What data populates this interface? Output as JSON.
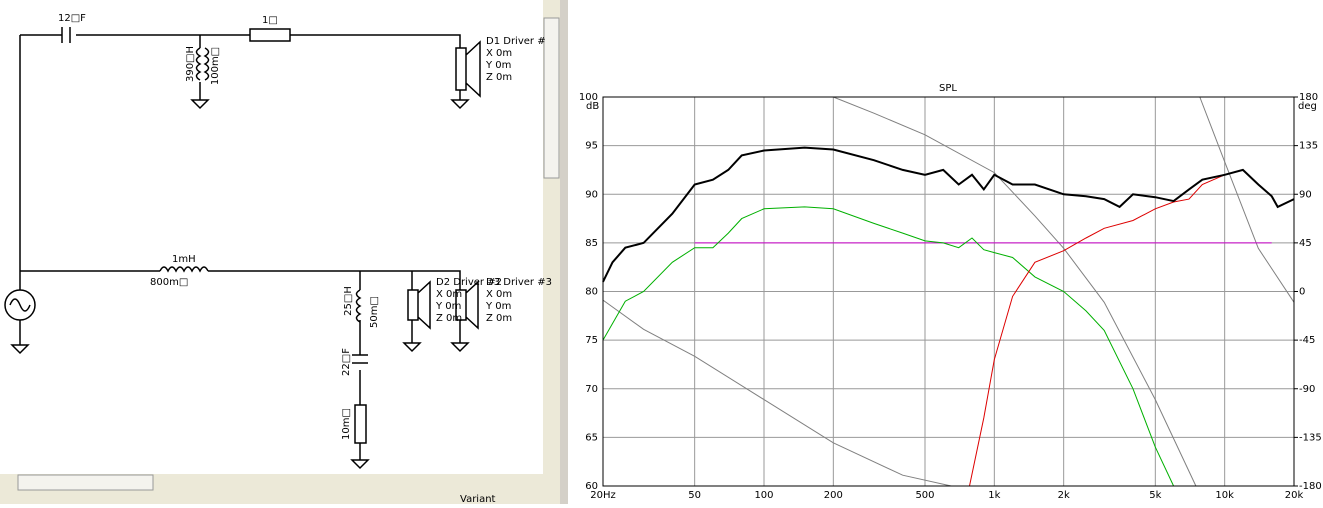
{
  "schematic": {
    "c1": "12□F",
    "r1": "1□",
    "l1": "390□H",
    "l1r": "100m□",
    "d1": "D1 Driver #",
    "d1x": "X 0m",
    "d1y": "Y 0m",
    "d1z": "Z 0m",
    "l2": "1mH",
    "l2r": "800m□",
    "l3": "25□H",
    "l3r": "50m□",
    "c2": "22□F",
    "r2": "10m□",
    "d2": "D2 Driver #2",
    "d2x": "X 0m",
    "d2y": "Y 0m",
    "d2z": "Z 0m",
    "d3": "D3 Driver #3",
    "d3x": "X 0m",
    "d3y": "Y 0m",
    "d3z": "Z 0m",
    "variant": "Variant"
  },
  "chart_data": {
    "type": "line",
    "title": "SPL",
    "y_label": "dB",
    "y2_label": "deg",
    "log_x": true,
    "xlim": [
      20,
      20000
    ],
    "xticks": [
      {
        "value": 20,
        "label": "20Hz"
      },
      50,
      100,
      200,
      500,
      {
        "value": 1000,
        "label": "1k"
      },
      {
        "value": 2000,
        "label": "2k"
      },
      {
        "value": 5000,
        "label": "5k"
      },
      {
        "value": 10000,
        "label": "10k"
      },
      {
        "value": 20000,
        "label": "20k"
      }
    ],
    "ylim": [
      60,
      100
    ],
    "yticks": [
      60,
      65,
      70,
      75,
      80,
      85,
      90,
      95,
      100
    ],
    "y2lim": [
      -180,
      180
    ],
    "y2ticks": [
      -180,
      -135,
      -90,
      -45,
      0,
      45,
      90,
      135,
      180
    ],
    "grid": true,
    "series": [
      {
        "color": "#808080",
        "axis": "y2",
        "x": [
          20,
          30,
          50,
          100,
          200,
          400,
          650
        ],
        "values": [
          -8,
          -35,
          -60,
          -100,
          -140,
          -170,
          -180
        ]
      },
      {
        "color": "#808080",
        "axis": "y2",
        "x": [
          200,
          300,
          500,
          1000,
          1500,
          2000,
          3000,
          5000,
          7500
        ],
        "values": [
          180,
          165,
          145,
          110,
          70,
          40,
          -10,
          -100,
          -180
        ]
      },
      {
        "color": "#808080",
        "axis": "y2",
        "x": [
          7800,
          10000,
          14000,
          20000
        ],
        "values": [
          180,
          120,
          40,
          -10
        ]
      },
      {
        "color": "#cc00cc",
        "x": [
          50,
          16000
        ],
        "values": [
          85,
          85
        ]
      },
      {
        "color": "#00b000",
        "x": [
          20,
          25,
          30,
          40,
          50,
          60,
          70,
          80,
          100,
          150,
          200,
          300,
          400,
          500,
          600,
          700,
          800,
          900,
          1000,
          1200,
          1500,
          2000,
          2500,
          3000,
          4000,
          5000,
          6000
        ],
        "values": [
          75,
          79,
          80,
          83,
          84.5,
          84.5,
          86,
          87.5,
          88.5,
          88.7,
          88.5,
          87,
          86,
          85.2,
          85,
          84.5,
          85.5,
          84.3,
          84,
          83.5,
          81.5,
          80,
          78,
          76,
          70,
          64,
          60
        ]
      },
      {
        "color": "#dd0000",
        "x": [
          780,
          900,
          1000,
          1200,
          1500,
          2000,
          2500,
          3000,
          4000,
          5000,
          6000,
          7000,
          8000,
          10000,
          12000,
          14000,
          16000,
          17000,
          20000
        ],
        "values": [
          60,
          67,
          73,
          79.5,
          83,
          84.2,
          85.5,
          86.5,
          87.3,
          88.5,
          89.2,
          89.5,
          91,
          92,
          92.5,
          91,
          89.8,
          88.7,
          89.5
        ]
      },
      {
        "color": "#000000",
        "width": 2,
        "x": [
          20,
          22,
          25,
          30,
          40,
          50,
          60,
          70,
          80,
          100,
          150,
          200,
          300,
          400,
          500,
          600,
          700,
          800,
          900,
          1000,
          1200,
          1500,
          2000,
          2500,
          3000,
          3500,
          4000,
          5000,
          6000,
          7000,
          8000,
          10000,
          12000,
          14000,
          16000,
          17000,
          20000
        ],
        "values": [
          81,
          83,
          84.5,
          85,
          88,
          91,
          91.5,
          92.5,
          94,
          94.5,
          94.8,
          94.6,
          93.5,
          92.5,
          92,
          92.5,
          91,
          92,
          90.5,
          92,
          91,
          91,
          90,
          89.8,
          89.5,
          88.7,
          90,
          89.7,
          89.3,
          90.5,
          91.5,
          92,
          92.5,
          91,
          89.8,
          88.7,
          89.5
        ]
      }
    ]
  }
}
